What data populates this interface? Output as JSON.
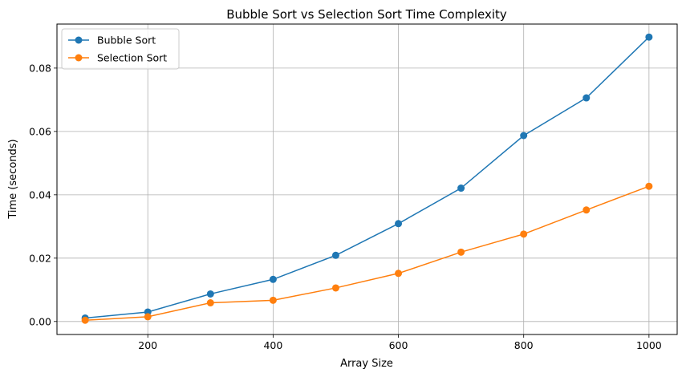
{
  "chart_data": {
    "type": "line",
    "title": "Bubble Sort vs Selection Sort Time Complexity",
    "xlabel": "Array Size",
    "ylabel": "Time (seconds)",
    "x": [
      100,
      200,
      300,
      400,
      500,
      600,
      700,
      800,
      900,
      1000
    ],
    "xlim": [
      55,
      1045
    ],
    "ylim": [
      -0.0041,
      0.0939
    ],
    "xticks": [
      200,
      400,
      600,
      800,
      1000
    ],
    "xtick_labels": [
      "200",
      "400",
      "600",
      "800",
      "1000"
    ],
    "yticks": [
      0.0,
      0.02,
      0.04,
      0.06,
      0.08
    ],
    "ytick_labels": [
      "0.00",
      "0.02",
      "0.04",
      "0.06",
      "0.08"
    ],
    "grid": true,
    "legend_position": "top-left",
    "series": [
      {
        "name": "Bubble Sort",
        "color": "#1f77b4",
        "marker": "circle",
        "values": [
          0.0011,
          0.003,
          0.0087,
          0.0133,
          0.0209,
          0.0309,
          0.0421,
          0.0587,
          0.0706,
          0.0898
        ]
      },
      {
        "name": "Selection Sort",
        "color": "#ff7f0e",
        "marker": "circle",
        "values": [
          0.0004,
          0.0015,
          0.0059,
          0.0067,
          0.0106,
          0.0152,
          0.0219,
          0.0276,
          0.0352,
          0.0427
        ]
      }
    ]
  }
}
